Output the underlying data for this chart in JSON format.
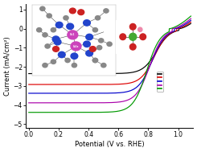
{
  "title": "",
  "xlabel": "Potential (V vs. RHE)",
  "ylabel": "Current (mA/cm²)",
  "xlim": [
    -0.02,
    1.1
  ],
  "ylim": [
    -5.2,
    1.3
  ],
  "yticks": [
    -5,
    -4,
    -3,
    -2,
    -1,
    0,
    1
  ],
  "xticks": [
    0.0,
    0.2,
    0.4,
    0.6,
    0.8,
    1.0
  ],
  "background_color": "#ffffff",
  "curves": [
    {
      "color": "#000000",
      "onset": 0.855,
      "limit_current": -2.35,
      "slope": 0.18
    },
    {
      "color": "#dd0000",
      "onset": 0.84,
      "limit_current": -2.92,
      "slope": 0.18
    },
    {
      "color": "#0000cc",
      "onset": 0.825,
      "limit_current": -3.38,
      "slope": 0.18
    },
    {
      "color": "#aa00aa",
      "onset": 0.81,
      "limit_current": -3.88,
      "slope": 0.18
    },
    {
      "color": "#009900",
      "onset": 0.79,
      "limit_current": -4.38,
      "slope": 0.18
    }
  ]
}
